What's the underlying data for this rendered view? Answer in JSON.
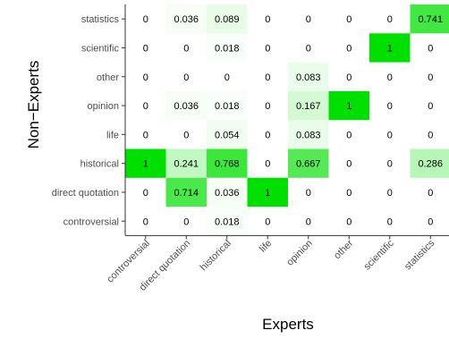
{
  "chart_data": {
    "type": "heatmap",
    "xlabel": "Experts",
    "ylabel": "Non−Experts",
    "x_categories": [
      "controversial",
      "direct quotation",
      "historical",
      "life",
      "opinion",
      "other",
      "scientific",
      "statistics"
    ],
    "y_categories": [
      "statistics",
      "scientific",
      "other",
      "opinion",
      "life",
      "historical",
      "direct quotation",
      "controversial"
    ],
    "values": [
      [
        "0",
        "0.036",
        "0.089",
        "0",
        "0",
        "0",
        "0",
        "0.741"
      ],
      [
        "0",
        "0",
        "0.018",
        "0",
        "0",
        "0",
        "1",
        "0"
      ],
      [
        "0",
        "0",
        "0",
        "0",
        "0.083",
        "0",
        "0",
        "0"
      ],
      [
        "0",
        "0.036",
        "0.018",
        "0",
        "0.167",
        "1",
        "0",
        "0"
      ],
      [
        "0",
        "0",
        "0.054",
        "0",
        "0.083",
        "0",
        "0",
        "0"
      ],
      [
        "1",
        "0.241",
        "0.768",
        "0",
        "0.667",
        "0",
        "0",
        "0.286"
      ],
      [
        "0",
        "0.714",
        "0.036",
        "1",
        "0",
        "0",
        "0",
        "0"
      ],
      [
        "0",
        "0",
        "0.018",
        "0",
        "0",
        "0",
        "0",
        "0"
      ]
    ],
    "color_low": "#ffffff",
    "color_high": "#00e000",
    "grid": false,
    "legend": "none"
  }
}
